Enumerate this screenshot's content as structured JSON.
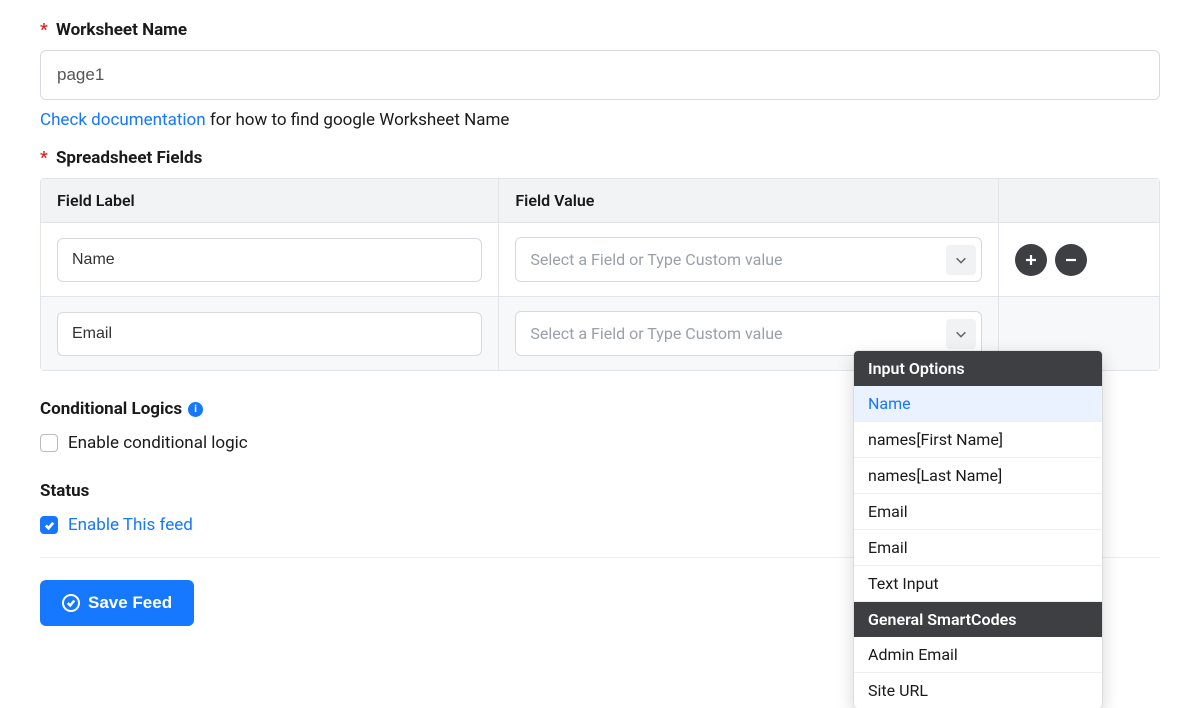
{
  "worksheet": {
    "label": "Worksheet Name",
    "value": "page1",
    "doc_link_text": "Check documentation",
    "doc_tail_text": " for how to find google Worksheet Name"
  },
  "spreadsheet_fields": {
    "label": "Spreadsheet Fields",
    "header_label": "Field Label",
    "header_value": "Field Value",
    "rows": [
      {
        "label": "Name",
        "value_placeholder": "Select a Field or Type Custom value",
        "show_actions": true,
        "alt": false
      },
      {
        "label": "Email",
        "value_placeholder": "Select a Field or Type Custom value",
        "show_actions": false,
        "alt": true
      }
    ],
    "value_select_placeholder": "Select a Field or Type Custom value"
  },
  "dropdown": {
    "attach_row": 1,
    "groups": [
      {
        "title": "Input Options",
        "items": [
          {
            "label": "Name",
            "highlight": true
          },
          {
            "label": "names[First Name]"
          },
          {
            "label": "names[Last Name]"
          },
          {
            "label": "Email"
          },
          {
            "label": "Email"
          },
          {
            "label": "Text Input"
          }
        ]
      },
      {
        "title": "General SmartCodes",
        "items": [
          {
            "label": "Admin Email"
          },
          {
            "label": "Site URL"
          }
        ]
      }
    ]
  },
  "conditional": {
    "heading": "Conditional Logics",
    "checkbox_label": "Enable conditional logic",
    "checked": false
  },
  "status": {
    "heading": "Status",
    "checkbox_label": "Enable This feed",
    "checked": true
  },
  "save_button": "Save Feed",
  "colors": {
    "primary": "#1677ff",
    "dark": "#3e3f42",
    "border": "#d6d9de"
  }
}
